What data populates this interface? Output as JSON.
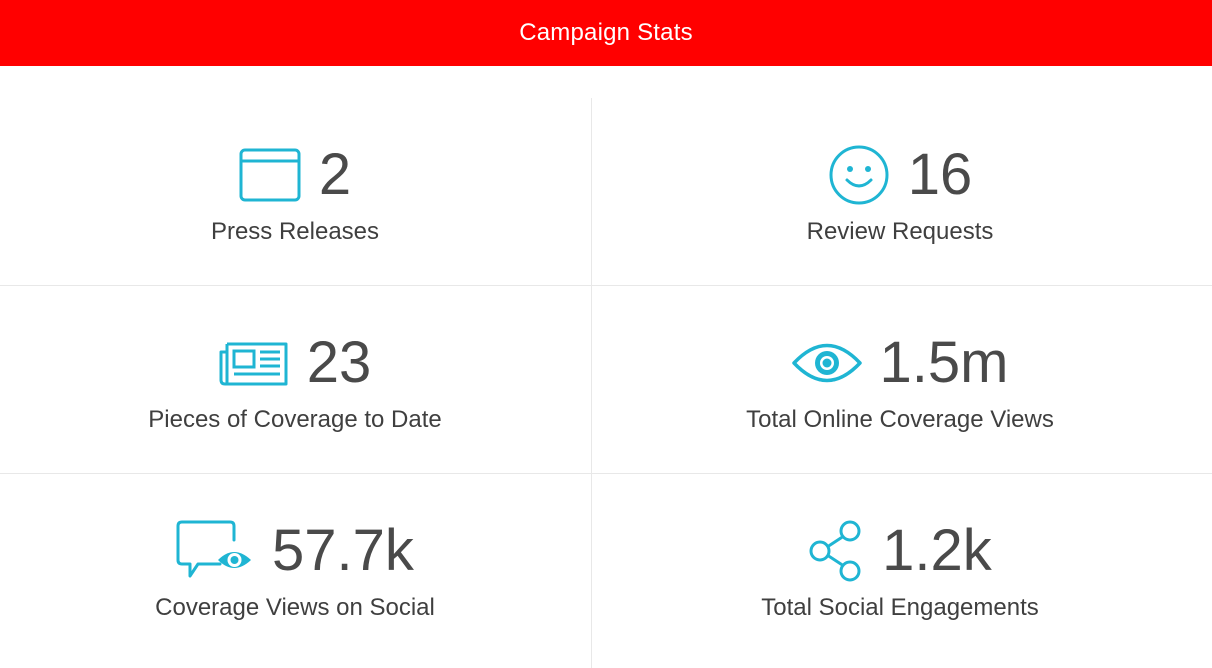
{
  "header": {
    "title": "Campaign Stats"
  },
  "accent_color": "#ff0000",
  "icon_color": "#1fb5d3",
  "stats": [
    {
      "value": "2",
      "label": "Press Releases",
      "icon": "browser-window-icon"
    },
    {
      "value": "16",
      "label": "Review Requests",
      "icon": "smiley-icon"
    },
    {
      "value": "23",
      "label": "Pieces of Coverage to Date",
      "icon": "newspaper-icon"
    },
    {
      "value": "1.5m",
      "label": "Total Online Coverage Views",
      "icon": "eye-icon"
    },
    {
      "value": "57.7k",
      "label": "Coverage Views on Social",
      "icon": "chat-eye-icon"
    },
    {
      "value": "1.2k",
      "label": "Total Social Engagements",
      "icon": "share-icon"
    }
  ]
}
